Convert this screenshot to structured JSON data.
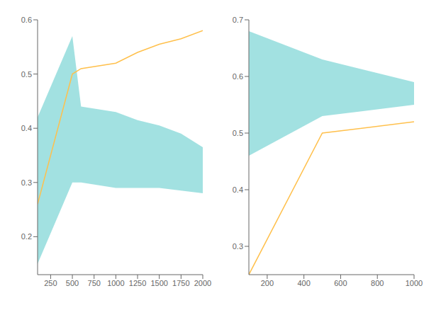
{
  "chart_data": [
    {
      "type": "line",
      "x": [
        100,
        500,
        600,
        1000,
        1250,
        1500,
        1750,
        2000
      ],
      "series": [
        {
          "type": "area",
          "color": "#56C9C9",
          "upper": [
            0.42,
            0.57,
            0.44,
            0.43,
            0.415,
            0.405,
            0.39,
            0.365
          ],
          "lower": [
            0.15,
            0.3,
            0.3,
            0.29,
            0.29,
            0.29,
            0.285,
            0.28
          ]
        },
        {
          "type": "line",
          "color": "#FFC04C",
          "values": [
            0.26,
            0.5,
            0.51,
            0.52,
            0.54,
            0.555,
            0.565,
            0.58
          ]
        }
      ],
      "xlim": [
        100,
        2000
      ],
      "ylim": [
        0.13,
        0.6
      ],
      "xticks": [
        250,
        500,
        750,
        1000,
        1250,
        1500,
        1750,
        2000
      ],
      "yticks": [
        0.2,
        0.3,
        0.4,
        0.5,
        0.6
      ],
      "grid": false
    },
    {
      "type": "line",
      "x": [
        100,
        500,
        1000
      ],
      "series": [
        {
          "type": "area",
          "color": "#56C9C9",
          "upper": [
            0.68,
            0.63,
            0.59
          ],
          "lower": [
            0.46,
            0.53,
            0.55
          ]
        },
        {
          "type": "line",
          "color": "#FFC04C",
          "values": [
            0.25,
            0.5,
            0.52
          ]
        }
      ],
      "xlim": [
        100,
        1000
      ],
      "ylim": [
        0.25,
        0.7
      ],
      "xticks": [
        200,
        400,
        600,
        800,
        1000
      ],
      "yticks": [
        0.3,
        0.4,
        0.5,
        0.6,
        0.7
      ],
      "grid": false
    }
  ]
}
